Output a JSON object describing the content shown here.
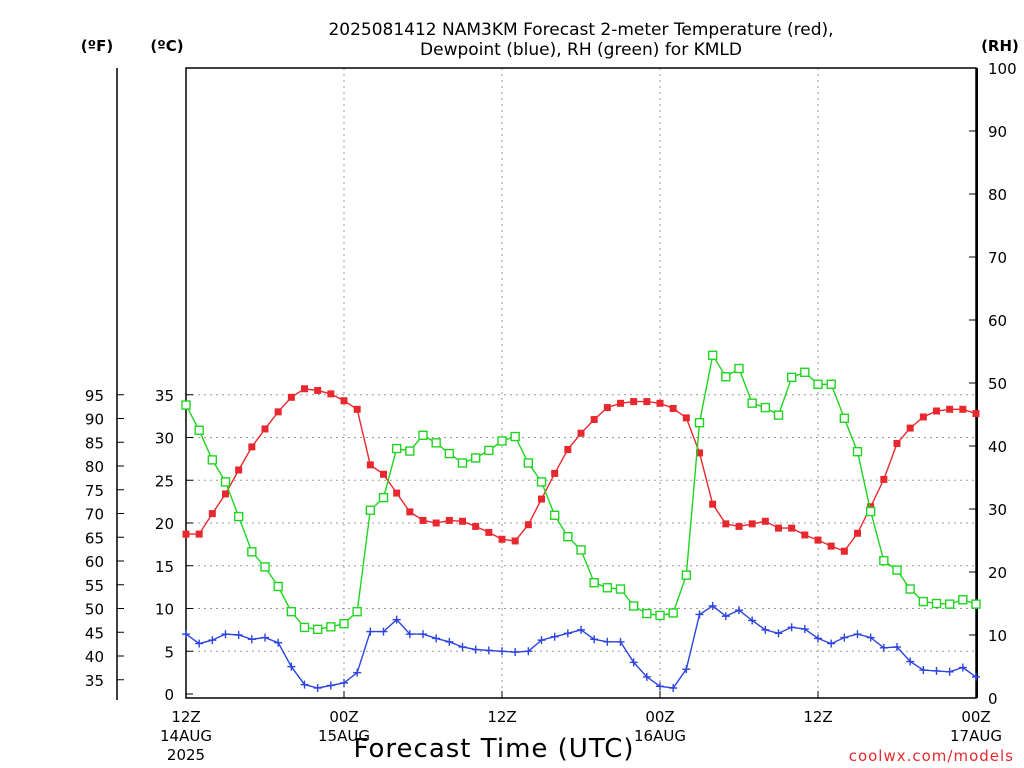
{
  "chart_data": {
    "type": "line",
    "title_line1": "2025081412 NAM3KM Forecast 2-meter Temperature (red),",
    "title_line2": "Dewpoint (blue), RH (green) for KMLD",
    "xlabel": "Forecast Time (UTC)",
    "credit": "coolwx.com/models",
    "unit_labels": {
      "fahrenheit": "(ºF)",
      "celsius": "(ºC)",
      "rh": "(RH)"
    },
    "x_ticks": [
      {
        "hour": 0,
        "label": "12Z",
        "date": "14AUG",
        "year": "2025"
      },
      {
        "hour": 12,
        "label": "00Z",
        "date": "15AUG",
        "year": ""
      },
      {
        "hour": 24,
        "label": "12Z",
        "date": "",
        "year": ""
      },
      {
        "hour": 36,
        "label": "00Z",
        "date": "16AUG",
        "year": ""
      },
      {
        "hour": 48,
        "label": "12Z",
        "date": "",
        "year": ""
      },
      {
        "hour": 60,
        "label": "00Z",
        "date": "17AUG",
        "year": ""
      }
    ],
    "xlim_hours": [
      0,
      60
    ],
    "ylim_celsius": [
      0,
      35
    ],
    "ylim_rh": [
      0,
      100
    ],
    "celsius_ticks": [
      0,
      5,
      10,
      15,
      20,
      25,
      30,
      35
    ],
    "fahrenheit_ticks": [
      35,
      40,
      45,
      50,
      55,
      60,
      65,
      70,
      75,
      80,
      85,
      90,
      95
    ],
    "rh_ticks": [
      0,
      10,
      20,
      30,
      40,
      50,
      60,
      70,
      80,
      90,
      100
    ],
    "grid": true,
    "series": [
      {
        "name": "Temperature",
        "unit": "ºC",
        "color": "#e8282f",
        "marker": "filled-square",
        "hours": [
          0,
          1,
          2,
          3,
          4,
          5,
          6,
          7,
          8,
          9,
          10,
          11,
          12,
          13,
          14,
          15,
          16,
          17,
          18,
          19,
          20,
          21,
          22,
          23,
          24,
          25,
          26,
          27,
          28,
          29,
          30,
          31,
          32,
          33,
          34,
          35,
          36,
          37,
          38,
          39,
          40,
          41,
          42,
          43,
          44,
          45,
          46,
          47,
          48,
          49,
          50,
          51,
          52,
          53,
          54,
          55,
          56,
          57,
          58,
          59,
          60
        ],
        "values": [
          18.7,
          18.7,
          21.1,
          23.4,
          26.2,
          28.9,
          31.0,
          33.0,
          34.7,
          35.7,
          35.5,
          35.1,
          34.3,
          33.3,
          26.8,
          25.7,
          23.5,
          21.3,
          20.3,
          20.0,
          20.3,
          20.2,
          19.6,
          18.9,
          18.1,
          17.9,
          19.8,
          22.8,
          25.8,
          28.6,
          30.5,
          32.1,
          33.5,
          34.0,
          34.2,
          34.2,
          34.0,
          33.4,
          32.3,
          28.2,
          22.2,
          19.9,
          19.6,
          19.9,
          20.2,
          19.4,
          19.4,
          18.6,
          18.0,
          17.3,
          16.7,
          18.8,
          21.9,
          25.1,
          29.3,
          31.1,
          32.4,
          33.1,
          33.3,
          33.3,
          32.8
        ]
      },
      {
        "name": "Dewpoint",
        "unit": "ºC",
        "color": "#2c44e0",
        "marker": "plus",
        "hours": [
          0,
          1,
          2,
          3,
          4,
          5,
          6,
          7,
          8,
          9,
          10,
          11,
          12,
          13,
          14,
          15,
          16,
          17,
          18,
          19,
          20,
          21,
          22,
          23,
          24,
          25,
          26,
          27,
          28,
          29,
          30,
          31,
          32,
          33,
          34,
          35,
          36,
          37,
          38,
          39,
          40,
          41,
          42,
          43,
          44,
          45,
          46,
          47,
          48,
          49,
          50,
          51,
          52,
          53,
          54,
          55,
          56,
          57,
          58,
          59,
          60
        ],
        "values": [
          7.0,
          5.9,
          6.3,
          7.0,
          6.9,
          6.4,
          6.6,
          6.0,
          3.2,
          1.1,
          0.7,
          1.0,
          1.3,
          2.5,
          7.3,
          7.3,
          8.7,
          7.0,
          7.0,
          6.5,
          6.1,
          5.5,
          5.2,
          5.1,
          5.0,
          4.9,
          5.0,
          6.3,
          6.7,
          7.1,
          7.5,
          6.4,
          6.1,
          6.1,
          3.7,
          2.0,
          0.9,
          0.7,
          2.9,
          9.3,
          10.3,
          9.1,
          9.8,
          8.6,
          7.5,
          7.1,
          7.8,
          7.6,
          6.5,
          5.9,
          6.6,
          7.0,
          6.6,
          5.4,
          5.5,
          3.8,
          2.8,
          2.7,
          2.6,
          3.1,
          2.0
        ]
      },
      {
        "name": "RH",
        "unit": "%",
        "color": "#1fd51f",
        "marker": "open-square",
        "hours": [
          0,
          1,
          2,
          3,
          4,
          5,
          6,
          7,
          8,
          9,
          10,
          11,
          12,
          13,
          14,
          15,
          16,
          17,
          18,
          19,
          20,
          21,
          22,
          23,
          24,
          25,
          26,
          27,
          28,
          29,
          30,
          31,
          32,
          33,
          34,
          35,
          36,
          37,
          38,
          39,
          40,
          41,
          42,
          43,
          44,
          45,
          46,
          47,
          48,
          49,
          50,
          51,
          52,
          53,
          54,
          55,
          56,
          57,
          58,
          59,
          60
        ],
        "values": [
          46.5,
          42.5,
          37.8,
          34.3,
          28.8,
          23.2,
          20.8,
          17.7,
          13.7,
          11.2,
          10.9,
          11.3,
          11.8,
          13.7,
          29.8,
          31.8,
          39.6,
          39.2,
          41.7,
          40.5,
          38.8,
          37.3,
          38.1,
          39.3,
          40.8,
          41.5,
          37.3,
          34.3,
          29.0,
          25.6,
          23.5,
          18.3,
          17.5,
          17.3,
          14.6,
          13.4,
          13.1,
          13.5,
          19.5,
          43.7,
          54.4,
          51.0,
          52.3,
          46.8,
          46.1,
          44.9,
          50.9,
          51.7,
          49.8,
          49.8,
          44.4,
          39.1,
          29.6,
          21.8,
          20.3,
          17.3,
          15.3,
          15.0,
          14.9,
          15.6,
          14.9
        ]
      }
    ]
  }
}
